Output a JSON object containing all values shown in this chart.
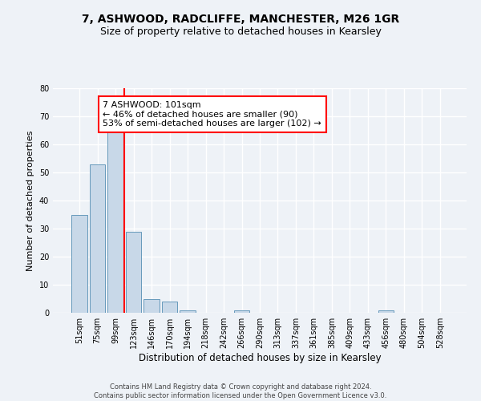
{
  "title": "7, ASHWOOD, RADCLIFFE, MANCHESTER, M26 1GR",
  "subtitle": "Size of property relative to detached houses in Kearsley",
  "xlabel": "Distribution of detached houses by size in Kearsley",
  "ylabel": "Number of detached properties",
  "footer_line1": "Contains HM Land Registry data © Crown copyright and database right 2024.",
  "footer_line2": "Contains public sector information licensed under the Open Government Licence v3.0.",
  "bin_labels": [
    "51sqm",
    "75sqm",
    "99sqm",
    "123sqm",
    "146sqm",
    "170sqm",
    "194sqm",
    "218sqm",
    "242sqm",
    "266sqm",
    "290sqm",
    "313sqm",
    "337sqm",
    "361sqm",
    "385sqm",
    "409sqm",
    "433sqm",
    "456sqm",
    "480sqm",
    "504sqm",
    "528sqm"
  ],
  "bar_values": [
    35,
    53,
    66,
    29,
    5,
    4,
    1,
    0,
    0,
    1,
    0,
    0,
    0,
    0,
    0,
    0,
    0,
    1,
    0,
    0,
    0
  ],
  "bar_color": "#c8d8e8",
  "bar_edge_color": "#6699bb",
  "red_line_x": 2.5,
  "annotation_text": "7 ASHWOOD: 101sqm\n← 46% of detached houses are smaller (90)\n53% of semi-detached houses are larger (102) →",
  "annotation_box_color": "white",
  "annotation_box_edge_color": "red",
  "annotation_fontsize": 8,
  "red_line_color": "red",
  "ylim": [
    0,
    80
  ],
  "yticks": [
    0,
    10,
    20,
    30,
    40,
    50,
    60,
    70,
    80
  ],
  "background_color": "#eef2f7",
  "grid_color": "white",
  "title_fontsize": 10,
  "subtitle_fontsize": 9,
  "ylabel_fontsize": 8,
  "xlabel_fontsize": 8.5,
  "tick_fontsize": 7,
  "footer_fontsize": 6
}
